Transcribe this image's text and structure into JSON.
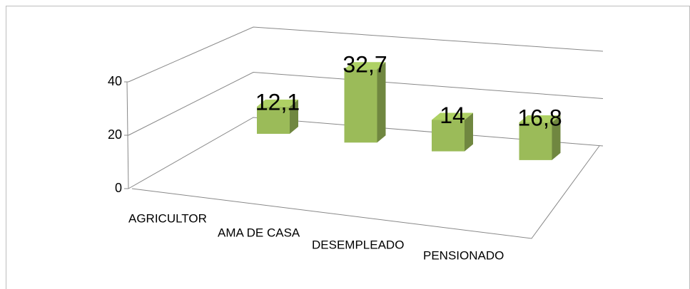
{
  "chart_data": {
    "type": "bar3d",
    "categories": [
      "AGRICULTOR",
      "AMA DE CASA",
      "DESEMPLEADO",
      "PENSIONADO"
    ],
    "values": [
      12.1,
      32.7,
      14,
      16.8
    ],
    "value_labels": [
      "12,1",
      "32,7",
      "14",
      "16,8"
    ],
    "color": "#9bbb59",
    "ylim": [
      0,
      40
    ],
    "yticks": [
      0,
      20,
      40
    ],
    "grid": true
  }
}
